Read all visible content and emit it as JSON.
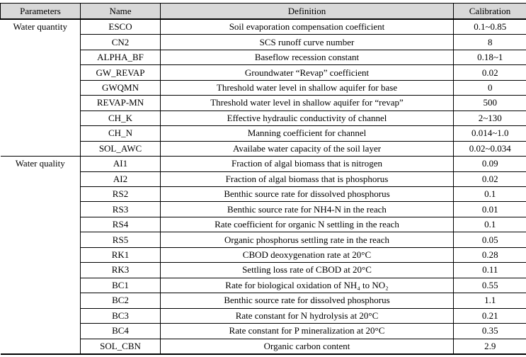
{
  "table": {
    "columns": [
      "Parameters",
      "Name",
      "Definition",
      "Calibration"
    ],
    "sections": [
      {
        "parameter": "Water quantity",
        "rows": [
          {
            "name": "ESCO",
            "definition": "Soil evaporation compensation coefficient",
            "calibration": "0.1~0.85"
          },
          {
            "name": "CN2",
            "definition": "SCS runoff curve number",
            "calibration": "8"
          },
          {
            "name": "ALPHA_BF",
            "definition": "Baseflow recession constant",
            "calibration": "0.18~1"
          },
          {
            "name": "GW_REVAP",
            "definition": "Groundwater “Revap” coefficient",
            "calibration": "0.02"
          },
          {
            "name": "GWQMN",
            "definition": "Threshold water level in shallow aquifer for base",
            "calibration": "0"
          },
          {
            "name": "REVAP-MN",
            "definition": "Threshold water level in shallow aquifer for “revap”",
            "calibration": "500"
          },
          {
            "name": "CH_K",
            "definition": "Effective hydraulic conductivity of channel",
            "calibration": "2~130"
          },
          {
            "name": "CH_N",
            "definition": "Manning coefficient for channel",
            "calibration": "0.014~1.0"
          },
          {
            "name": "SOL_AWC",
            "definition": "Availabe water capacity of the soil layer",
            "calibration": "0.02~0.034"
          }
        ]
      },
      {
        "parameter": "Water quality",
        "rows": [
          {
            "name": "AI1",
            "definition": "Fraction of algal biomass that is nitrogen",
            "calibration": "0.09"
          },
          {
            "name": "AI2",
            "definition": "Fraction of algal biomass that is phosphorus",
            "calibration": "0.02"
          },
          {
            "name": "RS2",
            "definition": "Benthic source rate for dissolved phosphorus",
            "calibration": "0.1"
          },
          {
            "name": "RS3",
            "definition": "Benthic source rate for NH4-N in the reach",
            "calibration": "0.01"
          },
          {
            "name": "RS4",
            "definition": "Rate coefficient for organic N settling in the reach",
            "calibration": "0.1"
          },
          {
            "name": "RS5",
            "definition": "Organic phosphorus settling rate in the reach",
            "calibration": "0.05"
          },
          {
            "name": "RK1",
            "definition": "CBOD deoxygenation rate at 20°C",
            "calibration": "0.28"
          },
          {
            "name": "RK3",
            "definition": "Settling loss rate of CBOD at 20°C",
            "calibration": "0.11"
          },
          {
            "name": "BC1",
            "definition": "Rate for biological oxidation of NH₄ to NO₂",
            "calibration": "0.55"
          },
          {
            "name": "BC2",
            "definition": "Benthic source rate for dissolved phosphorus",
            "calibration": "1.1"
          },
          {
            "name": "BC3",
            "definition": "Rate constant for N hydrolysis at 20°C",
            "calibration": "0.21"
          },
          {
            "name": "BC4",
            "definition": "Rate constant for P mineralization at 20°C",
            "calibration": "0.35"
          },
          {
            "name": "SOL_CBN",
            "definition": "Organic carbon content",
            "calibration": "2.9"
          }
        ]
      }
    ]
  }
}
